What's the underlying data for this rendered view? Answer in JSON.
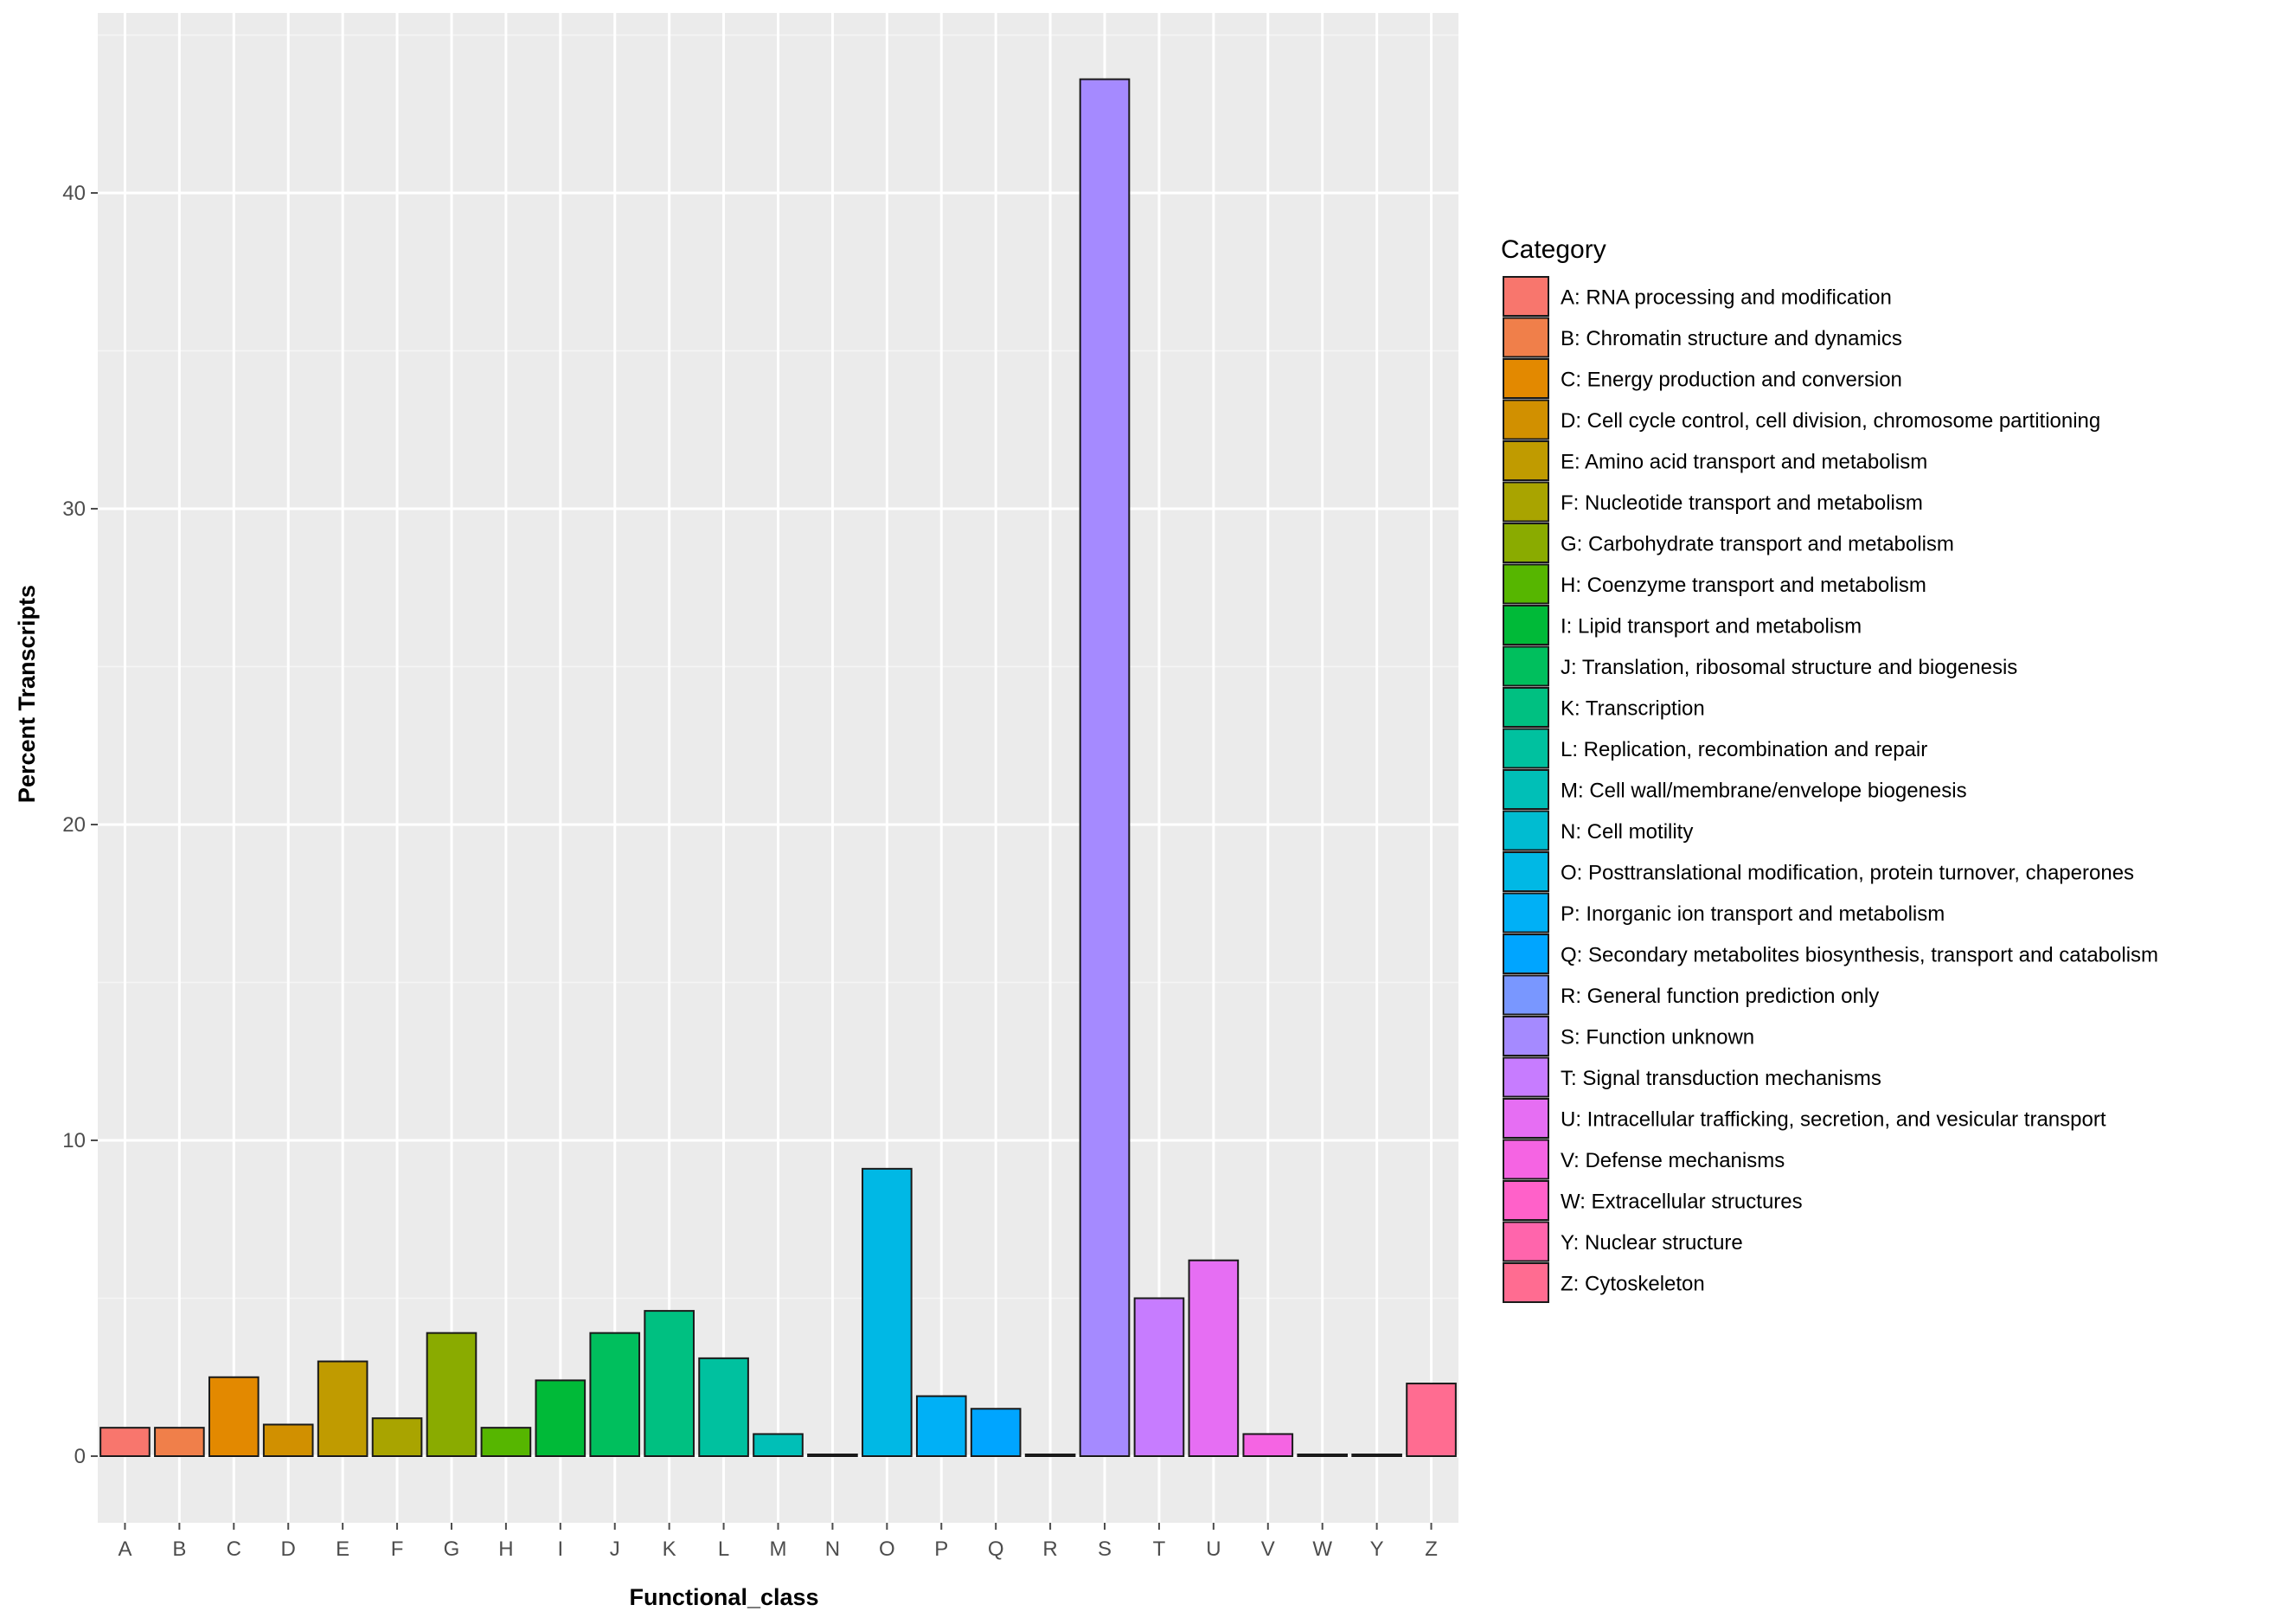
{
  "chart_data": {
    "type": "bar",
    "title": "",
    "xlabel": "Functional_class",
    "ylabel": "Percent Transcripts",
    "ylim": [
      -2,
      45
    ],
    "yticks": [
      0,
      10,
      20,
      30,
      40
    ],
    "grid": true,
    "legend_title": "Category",
    "legend_position": "right",
    "categories": [
      "A",
      "B",
      "C",
      "D",
      "E",
      "F",
      "G",
      "H",
      "I",
      "J",
      "K",
      "L",
      "M",
      "N",
      "O",
      "P",
      "Q",
      "R",
      "S",
      "T",
      "U",
      "V",
      "W",
      "Y",
      "Z"
    ],
    "values": [
      0.9,
      0.9,
      2.5,
      1.0,
      3.0,
      1.2,
      3.9,
      0.9,
      2.4,
      3.9,
      4.6,
      3.1,
      0.7,
      0.05,
      9.1,
      1.9,
      1.5,
      0.02,
      43.6,
      5.0,
      6.2,
      0.7,
      0.02,
      0.02,
      2.3
    ],
    "colors": [
      "#F8766D",
      "#F07F4A",
      "#E38900",
      "#D19000",
      "#C09B00",
      "#A9A400",
      "#8AAB00",
      "#56B600",
      "#00BA38",
      "#00BF5D",
      "#00C081",
      "#00C19F",
      "#00BFB7",
      "#00BCD1",
      "#00B8E5",
      "#00B0F6",
      "#00A5FF",
      "#7997FF",
      "#A58AFF",
      "#C77CFF",
      "#E66EF3",
      "#F564E3",
      "#FF61C9",
      "#FF65AC",
      "#FF6C91"
    ],
    "legend": [
      "A: RNA processing and modification",
      "B: Chromatin structure and dynamics",
      "C: Energy production and conversion",
      "D: Cell cycle control, cell division, chromosome partitioning",
      "E: Amino acid transport and metabolism",
      "F: Nucleotide transport and metabolism",
      "G: Carbohydrate transport and metabolism",
      "H: Coenzyme transport and metabolism",
      "I: Lipid transport and metabolism",
      "J: Translation, ribosomal structure and biogenesis",
      "K: Transcription",
      "L: Replication, recombination and repair",
      "M: Cell wall/membrane/envelope biogenesis",
      "N: Cell motility",
      "O: Posttranslational modification, protein turnover, chaperones",
      "P: Inorganic ion transport and metabolism",
      "Q: Secondary metabolites biosynthesis, transport and catabolism",
      "R: General function prediction only",
      "S: Function unknown",
      "T: Signal transduction mechanisms",
      "U: Intracellular trafficking, secretion, and vesicular transport",
      "V: Defense mechanisms",
      "W: Extracellular structures",
      "Y: Nuclear structure",
      "Z: Cytoskeleton"
    ]
  }
}
